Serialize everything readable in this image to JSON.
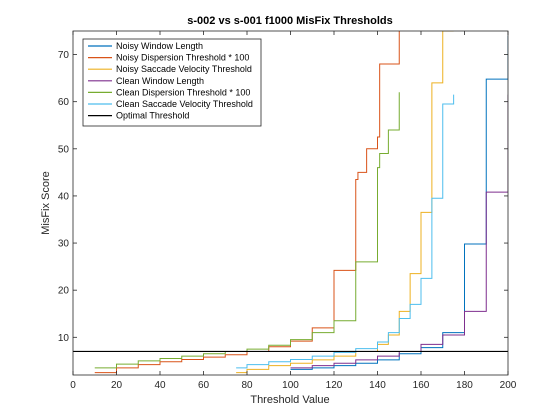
{
  "chart_data": {
    "type": "line",
    "title": "s-002 vs s-001 f1000 MisFix Thresholds",
    "xlabel": "Threshold Value",
    "ylabel": "MisFix Score",
    "xlim": [
      0,
      200
    ],
    "ylim": [
      2,
      75
    ],
    "xticks": [
      0,
      20,
      40,
      60,
      80,
      100,
      120,
      140,
      160,
      180,
      200
    ],
    "yticks": [
      10,
      20,
      30,
      40,
      50,
      60,
      70
    ],
    "grid": false,
    "legend_position": "top-left",
    "series": [
      {
        "name": "Noisy Window Length",
        "color": "#0072BD",
        "step": true,
        "x": [
          100,
          110,
          120,
          130,
          140,
          150,
          160,
          170,
          180,
          190,
          200
        ],
        "y": [
          3.2,
          3.5,
          4.0,
          4.5,
          5.2,
          6.5,
          7.8,
          11.0,
          29.8,
          64.8,
          74
        ]
      },
      {
        "name": "Noisy Dispersion Threshold * 100",
        "color": "#D95319",
        "step": true,
        "x": [
          10,
          20,
          30,
          40,
          50,
          60,
          70,
          80,
          90,
          100,
          110,
          120,
          130,
          131,
          135,
          140,
          141,
          150
        ],
        "y": [
          2.5,
          3.5,
          4.2,
          4.8,
          5.3,
          5.8,
          6.3,
          7.0,
          8.0,
          9.2,
          12.0,
          24.2,
          43.5,
          45,
          50,
          52.5,
          68,
          75
        ]
      },
      {
        "name": "Noisy Saccade Velocity Threshold",
        "color": "#EDB120",
        "step": true,
        "x": [
          75,
          80,
          90,
          100,
          110,
          120,
          130,
          140,
          145,
          150,
          155,
          160,
          165,
          170,
          175
        ],
        "y": [
          2.5,
          3.2,
          4.0,
          4.5,
          5.2,
          6.0,
          7.0,
          8.5,
          10.5,
          15.5,
          23.5,
          36.5,
          64.0,
          75,
          75
        ]
      },
      {
        "name": "Clean Window Length",
        "color": "#7E2F8E",
        "step": true,
        "x": [
          100,
          110,
          120,
          130,
          140,
          150,
          160,
          170,
          180,
          190,
          200
        ],
        "y": [
          3.5,
          4.0,
          4.5,
          5.2,
          6.0,
          7.0,
          8.5,
          10.5,
          15.5,
          40.8,
          61.5
        ]
      },
      {
        "name": "Clean Dispersion Threshold * 100",
        "color": "#77AC30",
        "step": true,
        "x": [
          10,
          20,
          30,
          40,
          50,
          60,
          70,
          80,
          90,
          100,
          110,
          120,
          130,
          140,
          141,
          145,
          150
        ],
        "y": [
          3.5,
          4.3,
          5.0,
          5.5,
          6.0,
          6.5,
          7.0,
          7.5,
          8.3,
          9.5,
          11.0,
          13.5,
          26.0,
          46.0,
          49,
          54,
          62
        ]
      },
      {
        "name": "Clean Saccade Velocity Threshold",
        "color": "#4DBEEE",
        "step": true,
        "x": [
          75,
          80,
          90,
          100,
          110,
          120,
          130,
          140,
          145,
          150,
          155,
          160,
          165,
          170,
          175
        ],
        "y": [
          3.5,
          4.2,
          4.8,
          5.3,
          6.0,
          6.8,
          7.6,
          9.0,
          11.0,
          14.0,
          17.0,
          22.5,
          39.5,
          59.5,
          61.5
        ]
      },
      {
        "name": "Optimal Threshold",
        "color": "#000000",
        "step": false,
        "x": [
          0,
          200
        ],
        "y": [
          7.0,
          7.0
        ]
      }
    ]
  }
}
